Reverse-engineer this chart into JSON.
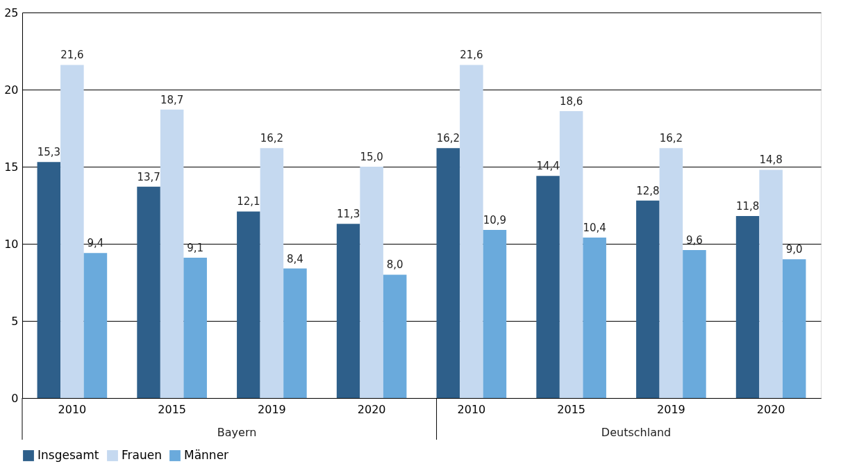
{
  "chart_data": {
    "type": "bar",
    "categories": [
      "2010",
      "2015",
      "2019",
      "2020",
      "2010",
      "2015",
      "2019",
      "2020"
    ],
    "series": [
      {
        "name": "Insgesamt",
        "color": "#2e5f8a",
        "values": [
          15.3,
          13.7,
          12.1,
          11.3,
          16.2,
          14.4,
          12.8,
          11.8
        ],
        "value_labels": [
          "15,3",
          "13,7",
          "12,1",
          "11,3",
          "16,2",
          "14,4",
          "12,8",
          "11,8"
        ]
      },
      {
        "name": "Frauen",
        "color": "#c5d9f0",
        "values": [
          21.6,
          18.7,
          16.2,
          15.0,
          21.6,
          18.6,
          16.2,
          14.8
        ],
        "value_labels": [
          "21,6",
          "18,7",
          "16,2",
          "15,0",
          "21,6",
          "18,6",
          "16,2",
          "14,8"
        ]
      },
      {
        "name": "Männer",
        "color": "#6aaadc",
        "values": [
          9.4,
          9.1,
          8.4,
          8.0,
          10.9,
          10.4,
          9.6,
          9.0
        ],
        "value_labels": [
          "9,4",
          "9,1",
          "8,4",
          "8,0",
          "10,9",
          "10,4",
          "9,6",
          "9,0"
        ]
      }
    ],
    "annotations": [
      "Bayern",
      "Deutschland"
    ],
    "ylim": [
      0,
      25
    ],
    "yticks": [
      0,
      5,
      10,
      15,
      20,
      25
    ],
    "grid": "y",
    "legend": "bottom"
  }
}
